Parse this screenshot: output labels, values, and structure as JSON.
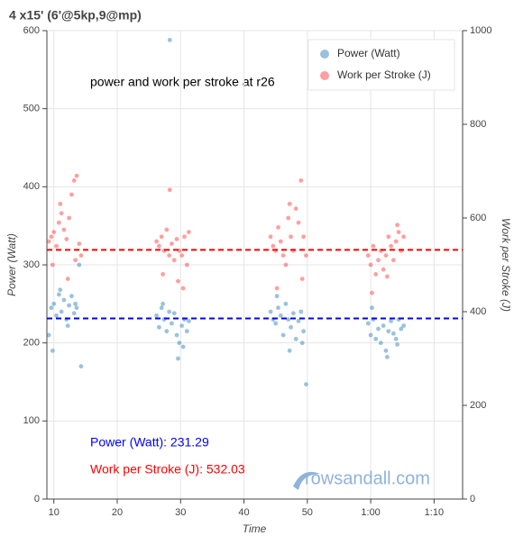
{
  "chart_data": {
    "type": "scatter",
    "title": "4 x15' (6'@5kp,9@mp)",
    "annotation": "power and work per stroke at r26",
    "x_label": "Time",
    "y_label": "Power (Watt)",
    "y2_label": "Work per Stroke (J)",
    "xlim": [
      8.9,
      74.5
    ],
    "xticks": [
      10,
      20,
      30,
      40,
      50,
      {
        "value": 60,
        "label": "1:00"
      },
      {
        "value": 70,
        "label": "1:10"
      }
    ],
    "ylim": [
      0,
      600
    ],
    "yticks": [
      0,
      100,
      200,
      300,
      400,
      500,
      600
    ],
    "y2lim": [
      0,
      1000
    ],
    "y2ticks": [
      0,
      200,
      400,
      600,
      800,
      1000
    ],
    "grid": true,
    "legend": "top-right",
    "series": [
      {
        "name": "Power (Watt)",
        "color": "#1f77b4",
        "x": [
          9.2,
          9.6,
          10,
          10.4,
          10.8,
          11.2,
          11.6,
          12,
          12.4,
          12.8,
          13.2,
          13.6,
          14,
          14.3,
          9.8,
          11,
          12.2,
          13.4,
          26.2,
          26.6,
          27,
          27.4,
          27.8,
          28.2,
          28.3,
          28.6,
          29,
          29.4,
          29.8,
          30.2,
          30.6,
          31,
          31.3,
          27.2,
          29.6,
          30.4,
          44.2,
          44.6,
          45,
          45.4,
          45.8,
          46.2,
          46.6,
          47,
          47.4,
          47.8,
          48.2,
          48.6,
          49,
          49.4,
          49.8,
          45.2,
          47.2,
          49.2,
          59.6,
          60,
          60.4,
          60.8,
          61.2,
          61.6,
          62,
          62.4,
          62.8,
          63.2,
          63.6,
          64,
          64.4,
          64.8,
          65.2,
          60.2,
          62.6,
          64.2
        ],
        "values": [
          210,
          245,
          250,
          235,
          262,
          240,
          255,
          230,
          248,
          260,
          238,
          245,
          300,
          170,
          190,
          268,
          222,
          250,
          235,
          220,
          245,
          230,
          215,
          240,
          588,
          225,
          238,
          210,
          200,
          222,
          230,
          215,
          228,
          250,
          180,
          195,
          240,
          230,
          225,
          245,
          235,
          210,
          250,
          230,
          220,
          238,
          205,
          228,
          240,
          215,
          147,
          260,
          190,
          200,
          225,
          210,
          230,
          205,
          218,
          200,
          222,
          190,
          215,
          228,
          212,
          205,
          230,
          218,
          222,
          245,
          182,
          198
        ]
      },
      {
        "name": "Work per Stroke (J)",
        "color": "#ff2a2a",
        "axis": "y2",
        "x": [
          9.2,
          9.6,
          10,
          10.4,
          10.8,
          11.2,
          11.6,
          12,
          12.4,
          12.8,
          13.2,
          13.6,
          14,
          14.3,
          9.8,
          11,
          12.2,
          13.4,
          26.2,
          26.6,
          27,
          27.4,
          27.8,
          28.2,
          28.3,
          28.6,
          29,
          29.4,
          29.8,
          30.2,
          30.6,
          31,
          31.3,
          27.2,
          29.6,
          30.4,
          44.2,
          44.6,
          45,
          45.4,
          45.8,
          46.2,
          46.6,
          47,
          47.4,
          47.8,
          48.2,
          48.6,
          49,
          49.4,
          49.8,
          45.2,
          47.2,
          49.2,
          59.6,
          60,
          60.4,
          60.8,
          61.2,
          61.6,
          62,
          62.4,
          62.8,
          63.2,
          63.6,
          64,
          64.4,
          64.8,
          65.2,
          60.2,
          62.6,
          64.2
        ],
        "values": [
          550,
          560,
          570,
          540,
          590,
          610,
          575,
          555,
          600,
          650,
          680,
          690,
          545,
          520,
          500,
          630,
          470,
          510,
          550,
          540,
          560,
          530,
          575,
          520,
          660,
          545,
          510,
          555,
          530,
          520,
          560,
          500,
          570,
          480,
          465,
          450,
          560,
          540,
          530,
          580,
          550,
          520,
          500,
          600,
          560,
          530,
          620,
          590,
          680,
          560,
          520,
          450,
          630,
          470,
          520,
          500,
          540,
          480,
          510,
          530,
          490,
          520,
          560,
          540,
          510,
          550,
          570,
          530,
          560,
          440,
          475,
          585
        ]
      }
    ],
    "hlines": [
      {
        "value": 231.29,
        "color": "#0000ff"
      },
      {
        "value": 532.03,
        "color": "#ff0000",
        "axis": "y2"
      }
    ],
    "summary": [
      {
        "text": "Power (Watt): 231.29",
        "color": "#0000ff"
      },
      {
        "text": "Work per Stroke (J): 532.03",
        "color": "#ff0000"
      }
    ],
    "watermark": "rowsandall.com"
  }
}
